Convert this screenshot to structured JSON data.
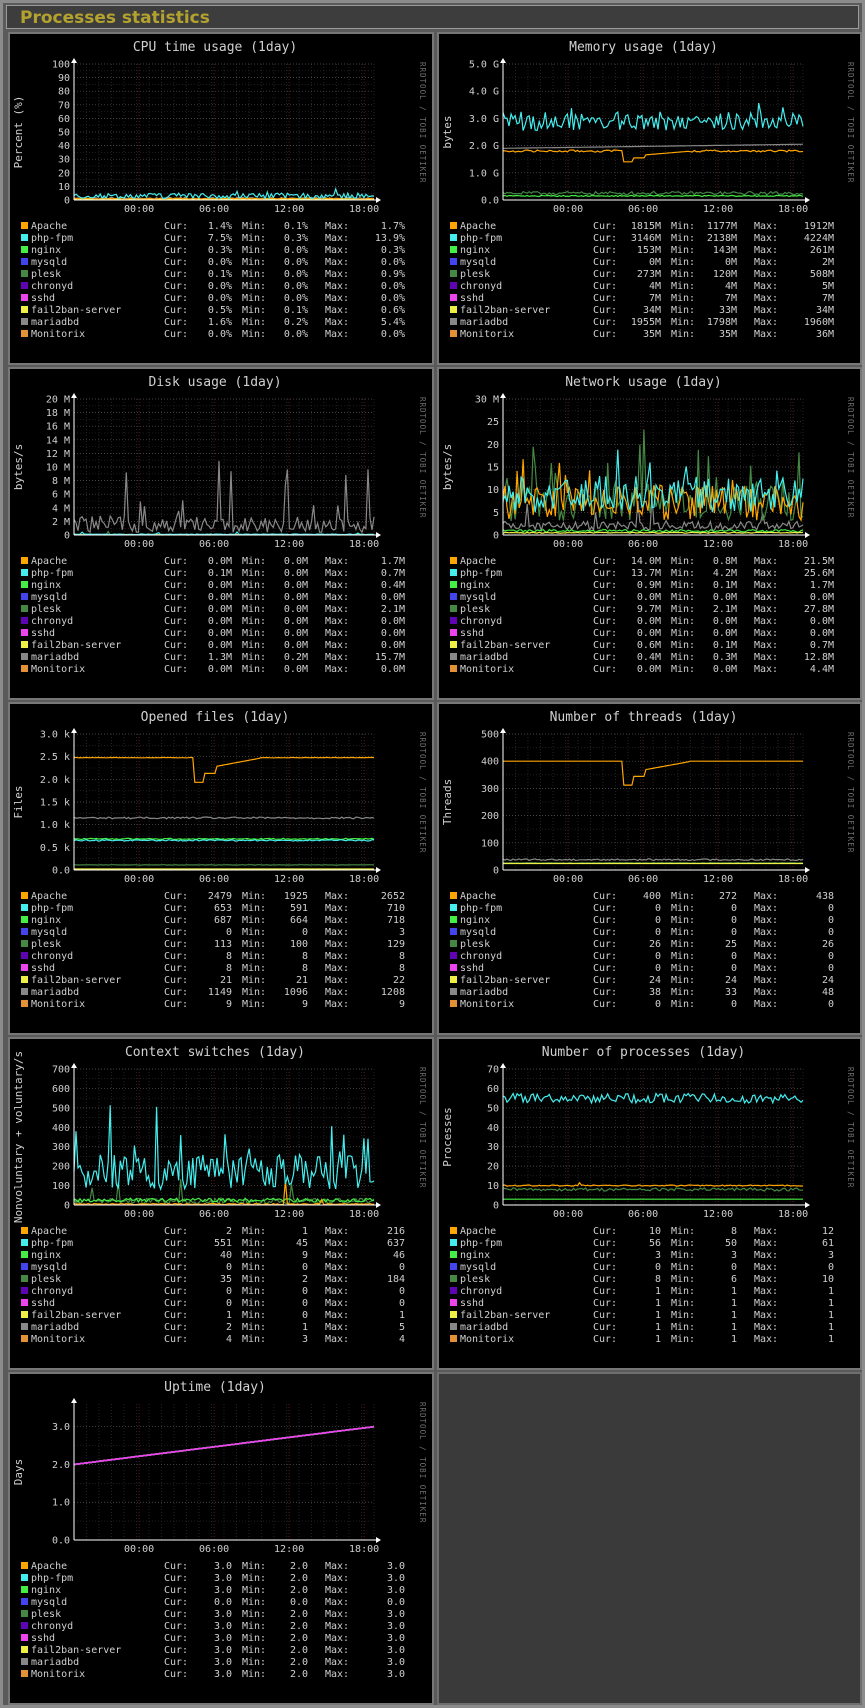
{
  "page": {
    "title": "Processes statistics"
  },
  "watermark": "RRDTOOL / TOBI OETIKER",
  "processes": [
    "Apache",
    "php-fpm",
    "nginx",
    "mysqld",
    "plesk",
    "chronyd",
    "sshd",
    "fail2ban-server",
    "mariadbd",
    "Monitorix"
  ],
  "colors": {
    "Apache": "#ffa500",
    "php-fpm": "#44eeee",
    "nginx": "#44ee44",
    "mysqld": "#4444ee",
    "plesk": "#448844",
    "chronyd": "#5f04b4",
    "sshd": "#ee44ee",
    "fail2ban-server": "#eeee44",
    "mariadbd": "#888888",
    "Monitorix": "#e29136"
  },
  "legend_labels": {
    "cur": "Cur:",
    "min": "Min:",
    "max": "Max:"
  },
  "chart_data": [
    {
      "type": "line",
      "title": "CPU time usage  (1day)",
      "ylabel": "Percent (%)",
      "x_ticks": [
        "00:00",
        "06:00",
        "12:00",
        "18:00"
      ],
      "y_ticks": [
        "0",
        "10",
        "20",
        "30",
        "40",
        "50",
        "60",
        "70",
        "80",
        "90",
        "100"
      ],
      "ylim": [
        0,
        100
      ],
      "series": [
        {
          "name": "Apache",
          "cur": "1.4%",
          "min": "0.1%",
          "max": "1.7%"
        },
        {
          "name": "php-fpm",
          "cur": "7.5%",
          "min": "0.3%",
          "max": "13.9%"
        },
        {
          "name": "nginx",
          "cur": "0.3%",
          "min": "0.0%",
          "max": "0.3%"
        },
        {
          "name": "mysqld",
          "cur": "0.0%",
          "min": "0.0%",
          "max": "0.0%"
        },
        {
          "name": "plesk",
          "cur": "0.1%",
          "min": "0.0%",
          "max": "0.9%"
        },
        {
          "name": "chronyd",
          "cur": "0.0%",
          "min": "0.0%",
          "max": "0.0%"
        },
        {
          "name": "sshd",
          "cur": "0.0%",
          "min": "0.0%",
          "max": "0.0%"
        },
        {
          "name": "fail2ban-server",
          "cur": "0.5%",
          "min": "0.1%",
          "max": "0.6%"
        },
        {
          "name": "mariadbd",
          "cur": "1.6%",
          "min": "0.2%",
          "max": "5.4%"
        },
        {
          "name": "Monitorix",
          "cur": "0.0%",
          "min": "0.0%",
          "max": "0.0%"
        }
      ]
    },
    {
      "type": "line",
      "title": "Memory usage  (1day)",
      "ylabel": "bytes",
      "x_ticks": [
        "00:00",
        "06:00",
        "12:00",
        "18:00"
      ],
      "y_ticks": [
        "0.0",
        "1.0 G",
        "2.0 G",
        "3.0 G",
        "4.0 G",
        "5.0 G"
      ],
      "ylim": [
        0,
        5
      ],
      "series": [
        {
          "name": "Apache",
          "cur": "1815M",
          "min": "1177M",
          "max": "1912M"
        },
        {
          "name": "php-fpm",
          "cur": "3146M",
          "min": "2138M",
          "max": "4224M"
        },
        {
          "name": "nginx",
          "cur": "153M",
          "min": "143M",
          "max": "261M"
        },
        {
          "name": "mysqld",
          "cur": "0M",
          "min": "0M",
          "max": "2M"
        },
        {
          "name": "plesk",
          "cur": "273M",
          "min": "120M",
          "max": "508M"
        },
        {
          "name": "chronyd",
          "cur": "4M",
          "min": "4M",
          "max": "5M"
        },
        {
          "name": "sshd",
          "cur": "7M",
          "min": "7M",
          "max": "7M"
        },
        {
          "name": "fail2ban-server",
          "cur": "34M",
          "min": "33M",
          "max": "34M"
        },
        {
          "name": "mariadbd",
          "cur": "1955M",
          "min": "1798M",
          "max": "1960M"
        },
        {
          "name": "Monitorix",
          "cur": "35M",
          "min": "35M",
          "max": "36M"
        }
      ]
    },
    {
      "type": "line",
      "title": "Disk usage  (1day)",
      "ylabel": "bytes/s",
      "x_ticks": [
        "00:00",
        "06:00",
        "12:00",
        "18:00"
      ],
      "y_ticks": [
        "0",
        "2 M",
        "4 M",
        "6 M",
        "8 M",
        "10 M",
        "12 M",
        "14 M",
        "16 M",
        "18 M",
        "20 M"
      ],
      "ylim": [
        0,
        20
      ],
      "series": [
        {
          "name": "Apache",
          "cur": "0.0M",
          "min": "0.0M",
          "max": "1.7M"
        },
        {
          "name": "php-fpm",
          "cur": "0.1M",
          "min": "0.0M",
          "max": "0.7M"
        },
        {
          "name": "nginx",
          "cur": "0.0M",
          "min": "0.0M",
          "max": "0.4M"
        },
        {
          "name": "mysqld",
          "cur": "0.0M",
          "min": "0.0M",
          "max": "0.0M"
        },
        {
          "name": "plesk",
          "cur": "0.0M",
          "min": "0.0M",
          "max": "2.1M"
        },
        {
          "name": "chronyd",
          "cur": "0.0M",
          "min": "0.0M",
          "max": "0.0M"
        },
        {
          "name": "sshd",
          "cur": "0.0M",
          "min": "0.0M",
          "max": "0.0M"
        },
        {
          "name": "fail2ban-server",
          "cur": "0.0M",
          "min": "0.0M",
          "max": "0.0M"
        },
        {
          "name": "mariadbd",
          "cur": "1.3M",
          "min": "0.2M",
          "max": "15.7M"
        },
        {
          "name": "Monitorix",
          "cur": "0.0M",
          "min": "0.0M",
          "max": "0.0M"
        }
      ]
    },
    {
      "type": "line",
      "title": "Network usage  (1day)",
      "ylabel": "bytes/s",
      "x_ticks": [
        "00:00",
        "06:00",
        "12:00",
        "18:00"
      ],
      "y_ticks": [
        "0",
        "5",
        "10",
        "15",
        "20",
        "25",
        "30 M"
      ],
      "ylim": [
        0,
        30
      ],
      "series": [
        {
          "name": "Apache",
          "cur": "14.0M",
          "min": "0.8M",
          "max": "21.5M"
        },
        {
          "name": "php-fpm",
          "cur": "13.7M",
          "min": "4.2M",
          "max": "25.6M"
        },
        {
          "name": "nginx",
          "cur": "0.9M",
          "min": "0.1M",
          "max": "1.7M"
        },
        {
          "name": "mysqld",
          "cur": "0.0M",
          "min": "0.0M",
          "max": "0.0M"
        },
        {
          "name": "plesk",
          "cur": "9.7M",
          "min": "2.1M",
          "max": "27.8M"
        },
        {
          "name": "chronyd",
          "cur": "0.0M",
          "min": "0.0M",
          "max": "0.0M"
        },
        {
          "name": "sshd",
          "cur": "0.0M",
          "min": "0.0M",
          "max": "0.0M"
        },
        {
          "name": "fail2ban-server",
          "cur": "0.6M",
          "min": "0.1M",
          "max": "0.7M"
        },
        {
          "name": "mariadbd",
          "cur": "0.4M",
          "min": "0.3M",
          "max": "12.8M"
        },
        {
          "name": "Monitorix",
          "cur": "0.0M",
          "min": "0.0M",
          "max": "4.4M"
        }
      ]
    },
    {
      "type": "line",
      "title": "Opened files  (1day)",
      "ylabel": "Files",
      "x_ticks": [
        "00:00",
        "06:00",
        "12:00",
        "18:00"
      ],
      "y_ticks": [
        "0.0",
        "0.5 k",
        "1.0 k",
        "1.5 k",
        "2.0 k",
        "2.5 k",
        "3.0 k"
      ],
      "ylim": [
        0,
        3000
      ],
      "series": [
        {
          "name": "Apache",
          "cur": "2479",
          "min": "1925",
          "max": "2652"
        },
        {
          "name": "php-fpm",
          "cur": "653",
          "min": "591",
          "max": "710"
        },
        {
          "name": "nginx",
          "cur": "687",
          "min": "664",
          "max": "718"
        },
        {
          "name": "mysqld",
          "cur": "0",
          "min": "0",
          "max": "3"
        },
        {
          "name": "plesk",
          "cur": "113",
          "min": "100",
          "max": "129"
        },
        {
          "name": "chronyd",
          "cur": "8",
          "min": "8",
          "max": "8"
        },
        {
          "name": "sshd",
          "cur": "8",
          "min": "8",
          "max": "8"
        },
        {
          "name": "fail2ban-server",
          "cur": "21",
          "min": "21",
          "max": "22"
        },
        {
          "name": "mariadbd",
          "cur": "1149",
          "min": "1096",
          "max": "1208"
        },
        {
          "name": "Monitorix",
          "cur": "9",
          "min": "9",
          "max": "9"
        }
      ]
    },
    {
      "type": "line",
      "title": "Number of threads  (1day)",
      "ylabel": "Threads",
      "x_ticks": [
        "00:00",
        "06:00",
        "12:00",
        "18:00"
      ],
      "y_ticks": [
        "0",
        "100",
        "200",
        "300",
        "400",
        "500"
      ],
      "ylim": [
        0,
        500
      ],
      "series": [
        {
          "name": "Apache",
          "cur": "400",
          "min": "272",
          "max": "438"
        },
        {
          "name": "php-fpm",
          "cur": "0",
          "min": "0",
          "max": "0"
        },
        {
          "name": "nginx",
          "cur": "0",
          "min": "0",
          "max": "0"
        },
        {
          "name": "mysqld",
          "cur": "0",
          "min": "0",
          "max": "0"
        },
        {
          "name": "plesk",
          "cur": "26",
          "min": "25",
          "max": "26"
        },
        {
          "name": "chronyd",
          "cur": "0",
          "min": "0",
          "max": "0"
        },
        {
          "name": "sshd",
          "cur": "0",
          "min": "0",
          "max": "0"
        },
        {
          "name": "fail2ban-server",
          "cur": "24",
          "min": "24",
          "max": "24"
        },
        {
          "name": "mariadbd",
          "cur": "38",
          "min": "33",
          "max": "48"
        },
        {
          "name": "Monitorix",
          "cur": "0",
          "min": "0",
          "max": "0"
        }
      ]
    },
    {
      "type": "line",
      "title": "Context switches  (1day)",
      "ylabel": "Nonvoluntary + voluntary/s",
      "x_ticks": [
        "00:00",
        "06:00",
        "12:00",
        "18:00"
      ],
      "y_ticks": [
        "0",
        "100",
        "200",
        "300",
        "400",
        "500",
        "600",
        "700"
      ],
      "ylim": [
        0,
        700
      ],
      "series": [
        {
          "name": "Apache",
          "cur": "2",
          "min": "1",
          "max": "216"
        },
        {
          "name": "php-fpm",
          "cur": "551",
          "min": "45",
          "max": "637"
        },
        {
          "name": "nginx",
          "cur": "40",
          "min": "9",
          "max": "46"
        },
        {
          "name": "mysqld",
          "cur": "0",
          "min": "0",
          "max": "0"
        },
        {
          "name": "plesk",
          "cur": "35",
          "min": "2",
          "max": "184"
        },
        {
          "name": "chronyd",
          "cur": "0",
          "min": "0",
          "max": "0"
        },
        {
          "name": "sshd",
          "cur": "0",
          "min": "0",
          "max": "0"
        },
        {
          "name": "fail2ban-server",
          "cur": "1",
          "min": "0",
          "max": "1"
        },
        {
          "name": "mariadbd",
          "cur": "2",
          "min": "1",
          "max": "5"
        },
        {
          "name": "Monitorix",
          "cur": "4",
          "min": "3",
          "max": "4"
        }
      ]
    },
    {
      "type": "line",
      "title": "Number of processes  (1day)",
      "ylabel": "Processes",
      "x_ticks": [
        "00:00",
        "06:00",
        "12:00",
        "18:00"
      ],
      "y_ticks": [
        "0",
        "10",
        "20",
        "30",
        "40",
        "50",
        "60",
        "70"
      ],
      "ylim": [
        0,
        70
      ],
      "series": [
        {
          "name": "Apache",
          "cur": "10",
          "min": "8",
          "max": "12"
        },
        {
          "name": "php-fpm",
          "cur": "56",
          "min": "50",
          "max": "61"
        },
        {
          "name": "nginx",
          "cur": "3",
          "min": "3",
          "max": "3"
        },
        {
          "name": "mysqld",
          "cur": "0",
          "min": "0",
          "max": "0"
        },
        {
          "name": "plesk",
          "cur": "8",
          "min": "6",
          "max": "10"
        },
        {
          "name": "chronyd",
          "cur": "1",
          "min": "1",
          "max": "1"
        },
        {
          "name": "sshd",
          "cur": "1",
          "min": "1",
          "max": "1"
        },
        {
          "name": "fail2ban-server",
          "cur": "1",
          "min": "1",
          "max": "1"
        },
        {
          "name": "mariadbd",
          "cur": "1",
          "min": "1",
          "max": "1"
        },
        {
          "name": "Monitorix",
          "cur": "1",
          "min": "1",
          "max": "1"
        }
      ]
    },
    {
      "type": "line",
      "title": "Uptime  (1day)",
      "ylabel": "Days",
      "x_ticks": [
        "00:00",
        "06:00",
        "12:00",
        "18:00"
      ],
      "y_ticks": [
        "0.0",
        "1.0",
        "2.0",
        "3.0"
      ],
      "ylim": [
        0,
        3.6
      ],
      "series": [
        {
          "name": "Apache",
          "cur": "3.0",
          "min": "2.0",
          "max": "3.0"
        },
        {
          "name": "php-fpm",
          "cur": "3.0",
          "min": "2.0",
          "max": "3.0"
        },
        {
          "name": "nginx",
          "cur": "3.0",
          "min": "2.0",
          "max": "3.0"
        },
        {
          "name": "mysqld",
          "cur": "0.0",
          "min": "0.0",
          "max": "0.0"
        },
        {
          "name": "plesk",
          "cur": "3.0",
          "min": "2.0",
          "max": "3.0"
        },
        {
          "name": "chronyd",
          "cur": "3.0",
          "min": "2.0",
          "max": "3.0"
        },
        {
          "name": "sshd",
          "cur": "3.0",
          "min": "2.0",
          "max": "3.0"
        },
        {
          "name": "fail2ban-server",
          "cur": "3.0",
          "min": "2.0",
          "max": "3.0"
        },
        {
          "name": "mariadbd",
          "cur": "3.0",
          "min": "2.0",
          "max": "3.0"
        },
        {
          "name": "Monitorix",
          "cur": "3.0",
          "min": "2.0",
          "max": "3.0"
        }
      ]
    }
  ]
}
